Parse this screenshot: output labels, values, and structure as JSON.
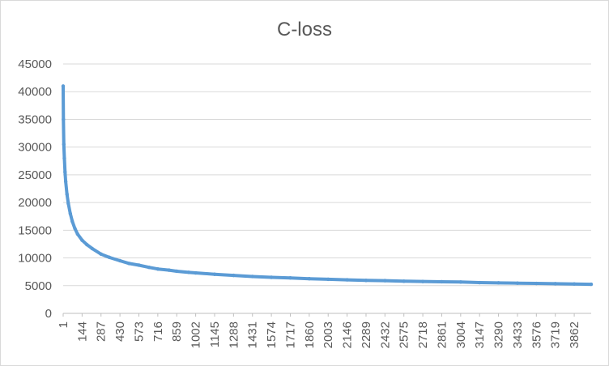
{
  "chart_data": {
    "type": "line",
    "title": "C-loss",
    "xlabel": "",
    "ylabel": "",
    "ylim": [
      0,
      45000
    ],
    "y_ticks": [
      "0",
      "5000",
      "10000",
      "15000",
      "20000",
      "25000",
      "30000",
      "35000",
      "40000",
      "45000"
    ],
    "x_ticks": [
      "1",
      "144",
      "287",
      "430",
      "573",
      "716",
      "859",
      "1002",
      "1145",
      "1288",
      "1431",
      "1574",
      "1717",
      "1860",
      "2003",
      "2146",
      "2289",
      "2432",
      "2575",
      "2718",
      "2861",
      "3004",
      "3147",
      "3290",
      "3433",
      "3576",
      "3719",
      "3862"
    ],
    "xlim": [
      1,
      3990
    ],
    "grid": true,
    "legend": "none",
    "series_color": "#5b9bd5",
    "series": [
      {
        "x": [
          1,
          3,
          6,
          10,
          15,
          20,
          30,
          40,
          55,
          70,
          90,
          110,
          144,
          180,
          220,
          287,
          350,
          430,
          500,
          573,
          650,
          716,
          800,
          859,
          950,
          1002,
          1145,
          1288,
          1431,
          1574,
          1717,
          1860,
          2003,
          2146,
          2289,
          2432,
          2575,
          2718,
          2861,
          3004,
          3147,
          3290,
          3433,
          3576,
          3719,
          3862,
          3990
        ],
        "values": [
          41000,
          35000,
          30500,
          28000,
          25500,
          23800,
          21500,
          19800,
          18000,
          16600,
          15300,
          14300,
          13200,
          12400,
          11700,
          10700,
          10100,
          9500,
          9000,
          8700,
          8300,
          8000,
          7800,
          7600,
          7400,
          7300,
          7050,
          6850,
          6650,
          6500,
          6400,
          6250,
          6150,
          6050,
          5950,
          5900,
          5800,
          5750,
          5700,
          5650,
          5550,
          5500,
          5450,
          5400,
          5350,
          5300,
          5250
        ]
      }
    ]
  }
}
